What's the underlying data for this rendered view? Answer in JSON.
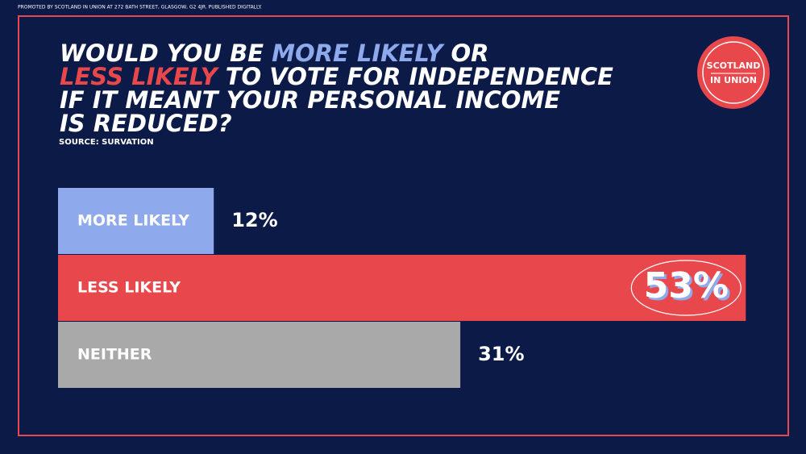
{
  "promoted_by": "PROMOTED BY SCOTLAND IN UNION AT 272 BATH STREET, GLASGOW, G2 4JR. PUBLISHED DIGITALLY.",
  "logo": [
    "SCOTLAND",
    "IN UNION"
  ],
  "chart_data": {
    "type": "bar",
    "orientation": "horizontal",
    "title": [
      [
        "WOULD YOU BE",
        "MORE LIKELY",
        "OR"
      ],
      [
        "LESS LIKELY",
        "TO VOTE FOR INDEPENDENCE"
      ],
      [
        "IF IT MEANT YOUR PERSONAL INCOME"
      ],
      [
        "IS REDUCED?"
      ]
    ],
    "subtitle": "SOURCE: SURVATION",
    "categories": [
      "MORE LIKELY",
      "LESS LIKELY",
      "NEITHER"
    ],
    "values": [
      12,
      53,
      31
    ],
    "value_labels": [
      "12%",
      "53%",
      "31%"
    ],
    "colors": [
      "#8ea9ec",
      "#e8474c",
      "#a9a9a9"
    ]
  }
}
